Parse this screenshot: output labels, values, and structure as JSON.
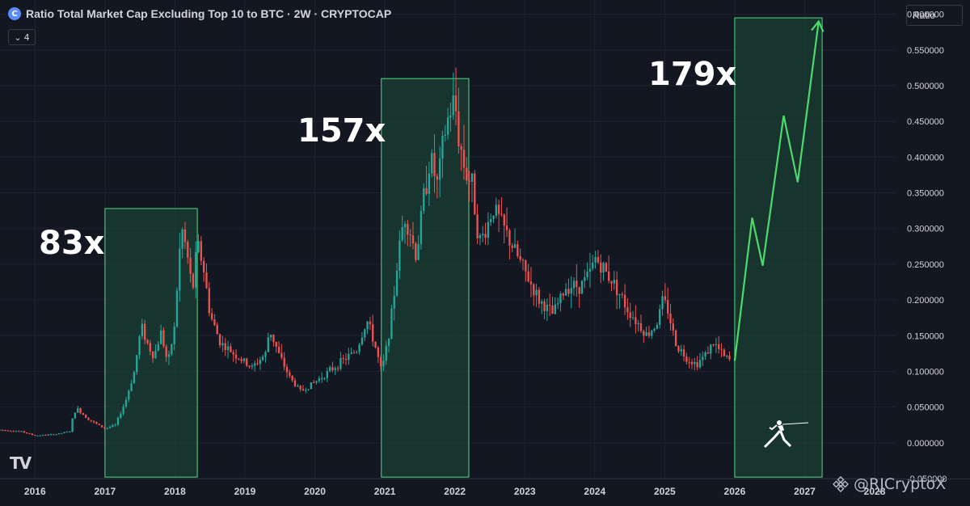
{
  "header": {
    "title": "Ratio Total Market Cap Excluding Top 10 to BTC · 2W · CRYPTOCAP",
    "logo_glyph": "C",
    "indicator_count": "4",
    "scale_label": "Ratio"
  },
  "watermark": "@RJCryptoX",
  "colors": {
    "background": "#131722",
    "up": "#26a69a",
    "down": "#ef5350",
    "box_fill": "#1e4d3a",
    "box_stroke": "#4ade80",
    "projection": "#4cdb6b"
  },
  "annotations": [
    {
      "label": "83x",
      "x0": 2017.0,
      "x1": 2018.32,
      "y0": -0.048,
      "y1": 0.328
    },
    {
      "label": "157x",
      "x0": 2020.95,
      "x1": 2022.2,
      "y0": -0.048,
      "y1": 0.51
    },
    {
      "label": "179x",
      "x0": 2026.0,
      "x1": 2027.25,
      "y0": -0.048,
      "y1": 0.595
    }
  ],
  "chart_data": {
    "type": "candlestick",
    "title": "Ratio Total Market Cap Excluding Top 10 to BTC · 2W · CRYPTOCAP",
    "xlabel": "",
    "ylabel": "",
    "xlim": [
      2015.5,
      2028.3
    ],
    "ylim": [
      -0.05,
      0.62
    ],
    "x_ticks": [
      "2016",
      "2017",
      "2018",
      "2019",
      "2020",
      "2021",
      "2022",
      "2023",
      "2024",
      "2025",
      "2026",
      "2027",
      "2028"
    ],
    "y_ticks": [
      "0.600000",
      "0.550000",
      "0.500000",
      "0.450000",
      "0.400000",
      "0.350000",
      "0.300000",
      "0.250000",
      "0.200000",
      "0.150000",
      "0.100000",
      "0.050000",
      "0.000000",
      "-0.050000"
    ],
    "price_path": [
      [
        2015.5,
        0.018
      ],
      [
        2015.8,
        0.016
      ],
      [
        2016.0,
        0.01
      ],
      [
        2016.3,
        0.012
      ],
      [
        2016.5,
        0.016
      ],
      [
        2016.55,
        0.04
      ],
      [
        2016.6,
        0.048
      ],
      [
        2016.75,
        0.034
      ],
      [
        2016.9,
        0.025
      ],
      [
        2017.0,
        0.02
      ],
      [
        2017.15,
        0.025
      ],
      [
        2017.3,
        0.06
      ],
      [
        2017.42,
        0.1
      ],
      [
        2017.52,
        0.165
      ],
      [
        2017.6,
        0.14
      ],
      [
        2017.7,
        0.12
      ],
      [
        2017.8,
        0.155
      ],
      [
        2017.9,
        0.11
      ],
      [
        2018.0,
        0.165
      ],
      [
        2018.05,
        0.25
      ],
      [
        2018.1,
        0.3
      ],
      [
        2018.18,
        0.26
      ],
      [
        2018.25,
        0.21
      ],
      [
        2018.32,
        0.28
      ],
      [
        2018.4,
        0.25
      ],
      [
        2018.5,
        0.18
      ],
      [
        2018.65,
        0.14
      ],
      [
        2018.9,
        0.12
      ],
      [
        2019.1,
        0.105
      ],
      [
        2019.3,
        0.125
      ],
      [
        2019.35,
        0.16
      ],
      [
        2019.5,
        0.12
      ],
      [
        2019.65,
        0.09
      ],
      [
        2019.8,
        0.072
      ],
      [
        2020.0,
        0.085
      ],
      [
        2020.2,
        0.1
      ],
      [
        2020.4,
        0.115
      ],
      [
        2020.6,
        0.13
      ],
      [
        2020.7,
        0.16
      ],
      [
        2020.75,
        0.17
      ],
      [
        2020.85,
        0.14
      ],
      [
        2020.95,
        0.1
      ],
      [
        2021.0,
        0.12
      ],
      [
        2021.1,
        0.18
      ],
      [
        2021.2,
        0.27
      ],
      [
        2021.28,
        0.32
      ],
      [
        2021.35,
        0.3
      ],
      [
        2021.45,
        0.26
      ],
      [
        2021.55,
        0.34
      ],
      [
        2021.65,
        0.4
      ],
      [
        2021.75,
        0.36
      ],
      [
        2021.85,
        0.43
      ],
      [
        2021.92,
        0.46
      ],
      [
        2022.0,
        0.48
      ],
      [
        2022.05,
        0.43
      ],
      [
        2022.15,
        0.38
      ],
      [
        2022.25,
        0.36
      ],
      [
        2022.35,
        0.28
      ],
      [
        2022.45,
        0.3
      ],
      [
        2022.55,
        0.33
      ],
      [
        2022.7,
        0.3
      ],
      [
        2022.85,
        0.27
      ],
      [
        2023.0,
        0.24
      ],
      [
        2023.2,
        0.2
      ],
      [
        2023.4,
        0.18
      ],
      [
        2023.6,
        0.22
      ],
      [
        2023.8,
        0.22
      ],
      [
        2023.95,
        0.24
      ],
      [
        2024.0,
        0.26
      ],
      [
        2024.15,
        0.24
      ],
      [
        2024.3,
        0.22
      ],
      [
        2024.45,
        0.19
      ],
      [
        2024.6,
        0.17
      ],
      [
        2024.75,
        0.15
      ],
      [
        2024.9,
        0.17
      ],
      [
        2024.97,
        0.2
      ],
      [
        2025.05,
        0.185
      ],
      [
        2025.15,
        0.14
      ],
      [
        2025.3,
        0.12
      ],
      [
        2025.45,
        0.11
      ],
      [
        2025.55,
        0.12
      ],
      [
        2025.7,
        0.14
      ],
      [
        2025.85,
        0.12
      ],
      [
        2025.95,
        0.115
      ]
    ],
    "projection": [
      [
        2026.0,
        0.115
      ],
      [
        2026.25,
        0.315
      ],
      [
        2026.4,
        0.248
      ],
      [
        2026.7,
        0.458
      ],
      [
        2026.9,
        0.365
      ],
      [
        2027.2,
        0.59
      ]
    ]
  }
}
